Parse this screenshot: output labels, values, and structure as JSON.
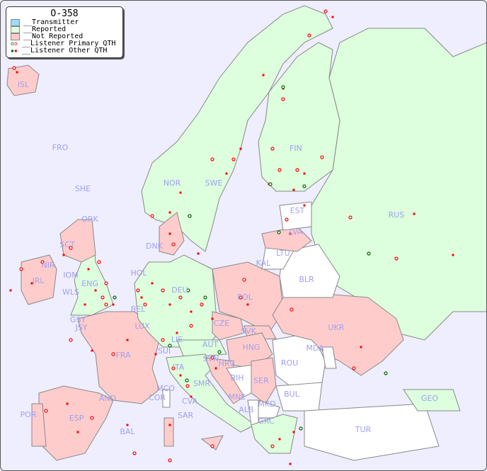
{
  "legend": {
    "title": "O-358",
    "items": [
      {
        "label": "__Transmitter",
        "color": "#99ddff"
      },
      {
        "label": "__Reported",
        "color": "#ddffdd"
      },
      {
        "label": "__Not Reported",
        "color": "#ffcccc"
      },
      {
        "label": "__Listener Primary QTH",
        "marker": "open-circle"
      },
      {
        "label": "__Listener Other QTH",
        "marker": "filled-square"
      }
    ]
  },
  "colors": {
    "sea": "#eeeeff",
    "reported": "#ddffdd",
    "not_reported": "#ffcccc",
    "no_data": "#ffffff",
    "listener": "#ff0000",
    "listener_alt": "#006600",
    "label": "#a0a0f0"
  },
  "countries": {
    "ISL": "ISL",
    "FRO": "FRO",
    "SHE": "SHE",
    "ORK": "ORK",
    "NOR": "NOR",
    "SWE": "SWE",
    "FIN": "FIN",
    "RUS": "RUS",
    "EST": "EST",
    "LVA": "LVA",
    "LTU": "LTU",
    "KAL": "KAL",
    "BLR": "BLR",
    "POL": "POL",
    "DNK": "DNK",
    "HOL": "HOL",
    "DEU": "DEU",
    "BEL": "BEL",
    "LUX": "LUX",
    "CZE": "CZE",
    "SVK": "SVK",
    "UKR": "UKR",
    "MDA": "MDA",
    "HNG": "HNG",
    "AUT": "AUT",
    "SUI": "SUI",
    "LIE": "LIE",
    "FRA": "FRA",
    "GSY": "GSY",
    "JSY": "JSY",
    "IRL": "IRL",
    "NIR": "NIR",
    "SCT": "SCT",
    "IOM": "IOM",
    "ENG": "ENG",
    "WLS": "WLS",
    "SVN": "SVN",
    "HRV": "HRV",
    "ITA": "ITA",
    "SMR": "SMR",
    "MCO": "MCO",
    "COR": "COR",
    "CVA": "CVA",
    "SAR": "SAR",
    "BIH": "BIH",
    "SER": "SER",
    "ROU": "ROU",
    "MNE": "MNE",
    "ALB": "ALB",
    "MKD": "MKD",
    "BUL": "BUL",
    "GRC": "GRC",
    "TUR": "TUR",
    "GEO": "GEO",
    "POR": "POR",
    "ESP": "ESP",
    "AND": "AND",
    "BAL": "BAL"
  }
}
